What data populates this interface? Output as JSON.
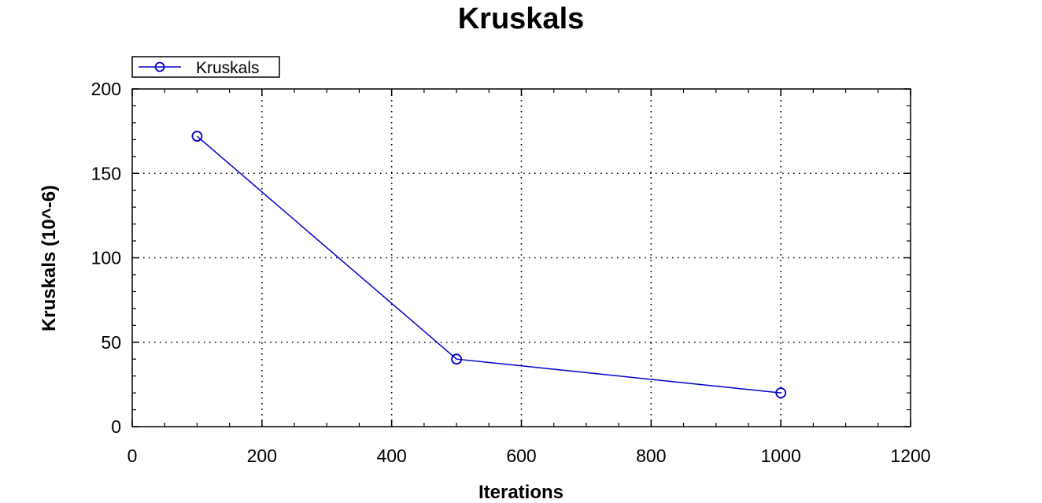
{
  "chart_data": {
    "type": "line",
    "title": "Kruskals",
    "xlabel": "Iterations",
    "ylabel": "Kruskals (10^-6)",
    "xlim": [
      0,
      1200
    ],
    "ylim": [
      0,
      200
    ],
    "x_ticks": [
      0,
      200,
      400,
      600,
      800,
      1000,
      1200
    ],
    "y_ticks": [
      0,
      50,
      100,
      150,
      200
    ],
    "grid": true,
    "grid_style": "dotted",
    "legend_position": "top-left",
    "series": [
      {
        "name": "Kruskals",
        "color": "#0000cc",
        "marker": "open-circle",
        "x": [
          100,
          500,
          1000
        ],
        "y": [
          172,
          40,
          20
        ]
      }
    ]
  }
}
